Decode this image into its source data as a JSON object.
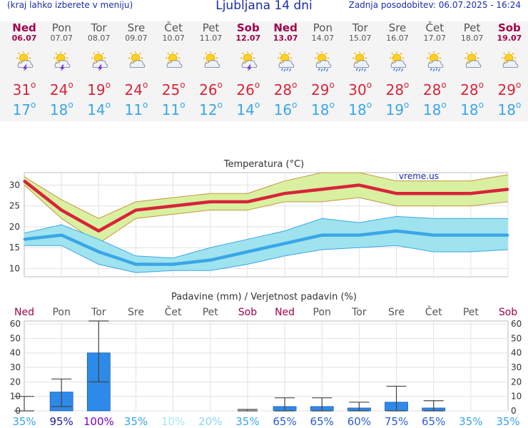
{
  "header": {
    "note": "(kraj lahko izberete v meniju)",
    "title": "Ljubljana 14 dni",
    "updated": "Zadnja posodobitev: 06.07.2025 - 16:24"
  },
  "days": [
    {
      "name": "Ned",
      "date": "06.07",
      "weekend": true,
      "icon": "sun-cloud-thunder-icon",
      "tmax": "31",
      "tmin": "17"
    },
    {
      "name": "Pon",
      "date": "07.07",
      "weekend": false,
      "icon": "sun-cloud-thunder-icon",
      "tmax": "24",
      "tmin": "18"
    },
    {
      "name": "Tor",
      "date": "08.07",
      "weekend": false,
      "icon": "sun-cloud-thunder-icon",
      "tmax": "19",
      "tmin": "14"
    },
    {
      "name": "Sre",
      "date": "09.07",
      "weekend": false,
      "icon": "sun-cloud-icon",
      "tmax": "24",
      "tmin": "11"
    },
    {
      "name": "Čet",
      "date": "10.07",
      "weekend": false,
      "icon": "sun-cloud-icon",
      "tmax": "25",
      "tmin": "11"
    },
    {
      "name": "Pet",
      "date": "11.07",
      "weekend": false,
      "icon": "sun-cloud-icon",
      "tmax": "26",
      "tmin": "12"
    },
    {
      "name": "Sob",
      "date": "12.07",
      "weekend": true,
      "icon": "sun-cloud-thunder-icon",
      "tmax": "26",
      "tmin": "14"
    },
    {
      "name": "Ned",
      "date": "13.07",
      "weekend": true,
      "icon": "sun-cloud-rain-icon",
      "tmax": "28",
      "tmin": "16"
    },
    {
      "name": "Pon",
      "date": "14.07",
      "weekend": false,
      "icon": "sun-cloud-rain-icon",
      "tmax": "29",
      "tmin": "18"
    },
    {
      "name": "Tor",
      "date": "15.07",
      "weekend": false,
      "icon": "sun-cloud-rain-icon",
      "tmax": "30",
      "tmin": "18"
    },
    {
      "name": "Sre",
      "date": "16.07",
      "weekend": false,
      "icon": "sun-cloud-rain-icon",
      "tmax": "28",
      "tmin": "19"
    },
    {
      "name": "Čet",
      "date": "17.07",
      "weekend": false,
      "icon": "sun-cloud-rain-icon",
      "tmax": "28",
      "tmin": "18"
    },
    {
      "name": "Pet",
      "date": "18.07",
      "weekend": false,
      "icon": "sun-cloud-icon",
      "tmax": "28",
      "tmin": "18"
    },
    {
      "name": "Sob",
      "date": "19.07",
      "weekend": true,
      "icon": "sun-cloud-icon",
      "tmax": "29",
      "tmin": "18"
    }
  ],
  "degree_symbol": "o",
  "colors": {
    "max": "#d8243a",
    "min": "#3aa6e6",
    "weekend": "#a0004a",
    "bar": "#2e8ae8"
  },
  "chart_data": [
    {
      "type": "line",
      "title": "Temperatura (°C)",
      "watermark": "vreme.us",
      "ylim": [
        8,
        33
      ],
      "yticks": [
        10,
        15,
        20,
        25,
        30
      ],
      "x": [
        0,
        1,
        2,
        3,
        4,
        5,
        6,
        7,
        8,
        9,
        10,
        11,
        12,
        13
      ],
      "series": [
        {
          "values": [
            31,
            24,
            19,
            24,
            25,
            26,
            26,
            28,
            29,
            30,
            28,
            28,
            28,
            29
          ],
          "band_low": [
            30,
            22,
            16,
            22,
            23,
            24,
            24,
            26,
            26,
            27,
            25,
            25,
            25,
            26
          ],
          "band_high": [
            32,
            26.5,
            22,
            26,
            27,
            28,
            28,
            31,
            33,
            33,
            31,
            31,
            31,
            32.5
          ]
        },
        {
          "values": [
            17,
            18,
            14,
            11,
            11,
            12,
            14,
            16,
            18,
            18,
            19,
            18,
            18,
            18
          ],
          "band_low": [
            15.5,
            15.5,
            11,
            9,
            9.5,
            9.5,
            11,
            13,
            14.5,
            15,
            15.5,
            14,
            14,
            14.5
          ],
          "band_high": [
            18.5,
            20.5,
            17,
            13,
            12.5,
            15,
            17,
            19,
            22,
            21,
            22.5,
            22,
            22,
            22
          ]
        }
      ]
    },
    {
      "type": "bar",
      "title": "Padavine (mm) / Verjetnost padavin (%)",
      "ylim": [
        0,
        62
      ],
      "yticks": [
        0,
        10,
        20,
        30,
        40,
        50,
        60
      ],
      "categories": [
        "Ned",
        "Pon",
        "Tor",
        "Sre",
        "Čet",
        "Pet",
        "Sob",
        "Ned",
        "Pon",
        "Tor",
        "Sre",
        "Čet",
        "Pet",
        "Sob"
      ],
      "weekend": [
        true,
        false,
        false,
        false,
        false,
        false,
        true,
        true,
        false,
        false,
        false,
        false,
        false,
        true
      ],
      "values": [
        0,
        13,
        40,
        0,
        0,
        0,
        0,
        3,
        3,
        2,
        6,
        2,
        0,
        0
      ],
      "err_low": [
        0,
        3,
        20,
        0,
        0,
        0,
        0,
        0,
        0,
        0,
        0,
        0,
        0,
        0
      ],
      "err_high": [
        10,
        22,
        62,
        0,
        0,
        0,
        1,
        9,
        9,
        6,
        17,
        7,
        0,
        0
      ],
      "probability": [
        "35%",
        "95%",
        "100%",
        "35%",
        "10%",
        "20%",
        "35%",
        "65%",
        "65%",
        "60%",
        "75%",
        "65%",
        "35%",
        "35%"
      ],
      "prob_colors": [
        "#3aa6e6",
        "#1a1aa0",
        "#7a00d0",
        "#3aa6e6",
        "#a8e6f5",
        "#8ad8f2",
        "#3aa6e6",
        "#2a5fd0",
        "#2a5fd0",
        "#2a5fd0",
        "#2a5fd0",
        "#2a5fd0",
        "#3aa6e6",
        "#3aa6e6"
      ]
    }
  ]
}
